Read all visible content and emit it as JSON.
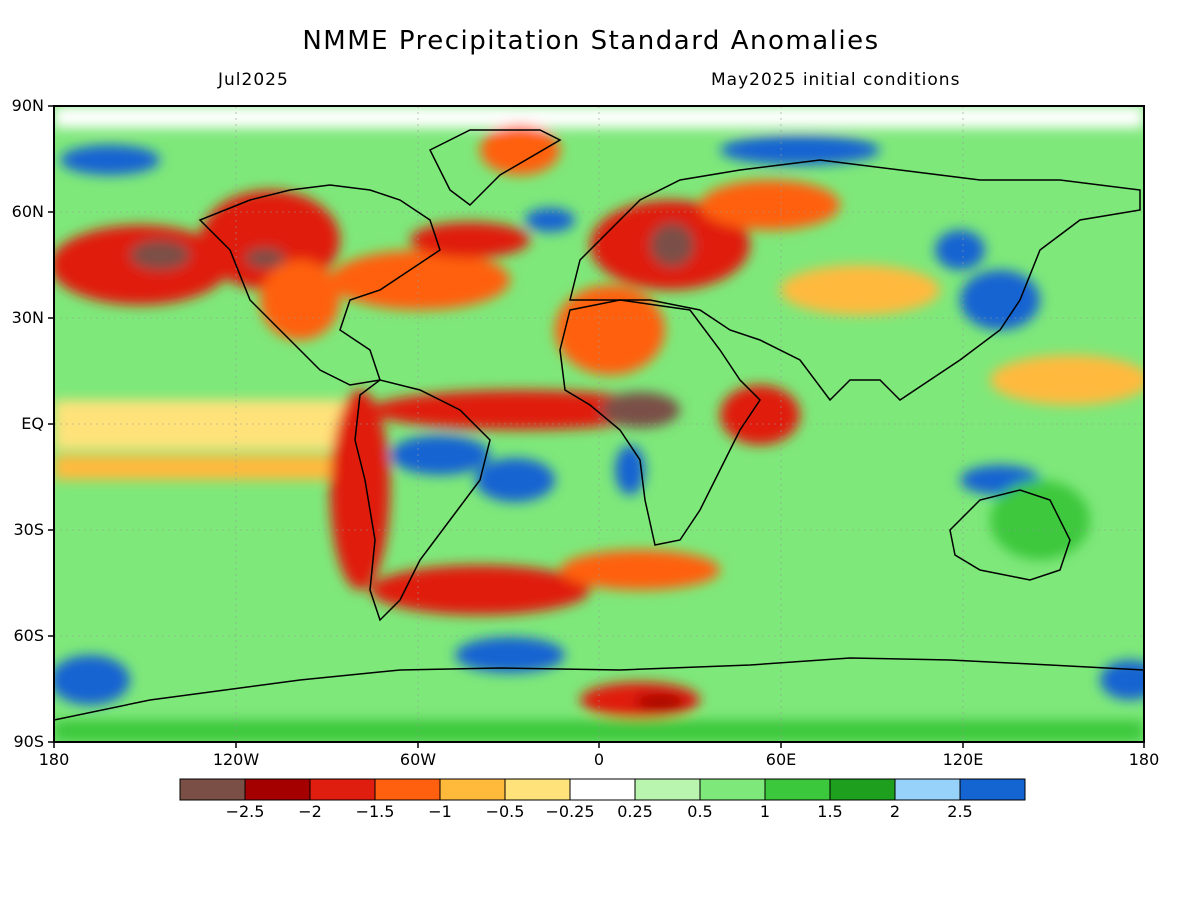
{
  "header": {
    "title": "NMME Precipitation Standard Anomalies",
    "valid_month": "Jul2025",
    "init_conditions": "May2025 initial conditions"
  },
  "axes": {
    "lat_ticks": [
      "90N",
      "60N",
      "30N",
      "EQ",
      "30S",
      "60S",
      "90S"
    ],
    "lon_ticks": [
      "180",
      "120W",
      "60W",
      "0",
      "60E",
      "120E",
      "180"
    ]
  },
  "colorbar": {
    "colors": [
      "#7a5046",
      "#a50000",
      "#e01e10",
      "#ff6010",
      "#ffba3c",
      "#ffe27a",
      "#ffffff",
      "#baf5b0",
      "#7ee87a",
      "#3cc83c",
      "#1ea01e",
      "#96d2fa",
      "#1464d2"
    ],
    "labels": [
      "−2.5",
      "−2",
      "−1.5",
      "−1",
      "−0.5",
      "−0.25",
      "0.25",
      "0.5",
      "1",
      "1.5",
      "2",
      "2.5"
    ]
  },
  "map_colors": {
    "coastline": "#000000",
    "frame": "#000000"
  }
}
